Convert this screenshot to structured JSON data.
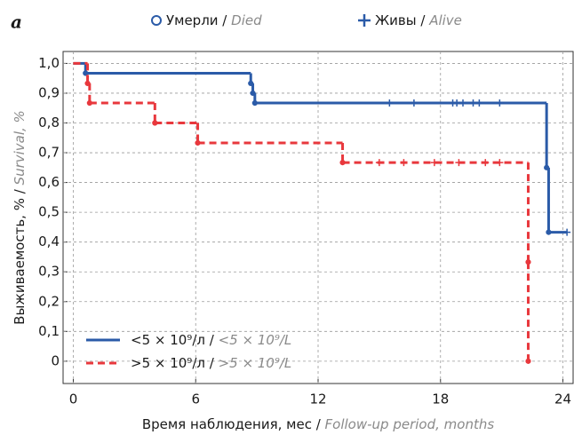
{
  "panel_label": "a",
  "legend_top": {
    "died": "Умерли / ",
    "died_en": "Died",
    "alive": "Живы / ",
    "alive_en": "Alive"
  },
  "chart_data": {
    "type": "step",
    "ylabel": "Выживаемость, % / ",
    "ylabel_en": "Survival, %",
    "xlabel": "Время наблюдения, мес / ",
    "xlabel_en": "Follow-up period, months",
    "xlim": [
      -0.5,
      24.5
    ],
    "ylim": [
      -0.075,
      1.04
    ],
    "xticks": [
      0,
      6,
      12,
      18,
      24
    ],
    "yticks": [
      {
        "value": 1.0,
        "label": "1,0"
      },
      {
        "value": 0.9,
        "label": "0,9"
      },
      {
        "value": 0.8,
        "label": "0,8"
      },
      {
        "value": 0.7,
        "label": "0,7"
      },
      {
        "value": 0.6,
        "label": "0,6"
      },
      {
        "value": 0.5,
        "label": "0,5"
      },
      {
        "value": 0.4,
        "label": "0,4"
      },
      {
        "value": 0.3,
        "label": "0,3"
      },
      {
        "value": 0.2,
        "label": "0,2"
      },
      {
        "value": 0.1,
        "label": "0,1"
      },
      0
    ],
    "grid": true,
    "series": [
      {
        "name": "<5 × 10⁹/л / ",
        "name_en": "<5 × 10⁹/L",
        "color": "#2b5ba8",
        "dashed": false,
        "x": [
          0,
          0.6,
          8.7,
          8.8,
          8.9,
          23.2,
          23.3
        ],
        "values": [
          1.0,
          0.967,
          0.933,
          0.9,
          0.867,
          0.65,
          0.433
        ],
        "censored_x": [
          15.5,
          16.7,
          18.6,
          18.8,
          19.1,
          19.6,
          19.9,
          20.9,
          24.2
        ],
        "censored_values": [
          0.867,
          0.867,
          0.867,
          0.867,
          0.867,
          0.867,
          0.867,
          0.867,
          0.433
        ]
      },
      {
        "name": ">5 × 10⁹/л / ",
        "name_en": ">5 × 10⁹/L",
        "color": "#e8383d",
        "dashed": true,
        "x": [
          0,
          0.7,
          0.8,
          4.0,
          6.1,
          13.2,
          22.3,
          22.3
        ],
        "values": [
          1.0,
          0.933,
          0.867,
          0.8,
          0.733,
          0.667,
          0.333,
          0
        ],
        "censored_x": [
          15.0,
          16.2,
          17.7,
          18.9,
          20.2,
          20.9
        ],
        "censored_values": [
          0.667,
          0.667,
          0.667,
          0.667,
          0.667,
          0.667
        ]
      }
    ]
  }
}
